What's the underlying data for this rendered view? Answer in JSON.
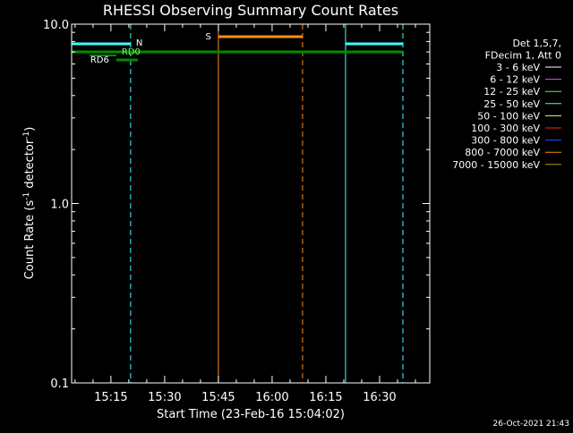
{
  "chart_data": {
    "type": "line",
    "title": "RHESSI Observing Summary Count Rates",
    "xlabel": "Start Time (23-Feb-16 15:04:02)",
    "ylabel_main": "Count Rate (s",
    "ylabel_sup1": "-1",
    "ylabel_mid": " detector",
    "ylabel_sup2": "-1",
    "ylabel_end": ")",
    "x_scale": "time",
    "y_scale": "log",
    "xlim": [
      "15:04:02",
      "16:44:00"
    ],
    "ylim": [
      0.1,
      10.0
    ],
    "x_ticks": [
      {
        "time": "15:15",
        "label": "15:15"
      },
      {
        "time": "15:30",
        "label": "15:30"
      },
      {
        "time": "15:45",
        "label": "15:45"
      },
      {
        "time": "16:00",
        "label": "16:00"
      },
      {
        "time": "16:15",
        "label": "16:15"
      },
      {
        "time": "16:30",
        "label": "16:30"
      }
    ],
    "y_ticks": [
      {
        "value": 10.0,
        "label": "10.0"
      },
      {
        "value": 1.0,
        "label": "1.0"
      },
      {
        "value": 0.1,
        "label": "0.1"
      }
    ],
    "legend_position": "top-right",
    "legend_header": [
      "Det 1,5,7,",
      "FDecim 1, Att 0"
    ],
    "legend": [
      {
        "label": "3 - 6 keV",
        "color": "#ffffff"
      },
      {
        "label": "6 - 12 keV",
        "color": "#ff40ff"
      },
      {
        "label": "12 - 25 keV",
        "color": "#40ff40"
      },
      {
        "label": "25 - 50 keV",
        "color": "#40ffff"
      },
      {
        "label": "50 - 100 keV",
        "color": "#ffff40"
      },
      {
        "label": "100 - 300 keV",
        "color": "#ff2020"
      },
      {
        "label": "300 - 800 keV",
        "color": "#4040ff"
      },
      {
        "label": "800 - 7000 keV",
        "color": "#ff8c1a"
      },
      {
        "label": "7000 - 15000 keV",
        "color": "#b59a10"
      }
    ],
    "night_intervals": [
      {
        "start": "15:04:02",
        "end": "15:20:30",
        "label": "N",
        "color": "#40ffff"
      },
      {
        "start": "16:20:30",
        "end": "16:36:30",
        "label": "",
        "color": "#40ffff"
      }
    ],
    "saa_intervals": [
      {
        "start": "15:45:00",
        "end": "16:08:30",
        "label": "S",
        "color": "#ff8c1a"
      }
    ],
    "decimation_bars": [
      {
        "start": "15:04:02",
        "end": "16:36:30",
        "label": "RD0",
        "color": "#008c00",
        "level": "upper"
      },
      {
        "start": "15:16:30",
        "end": "15:22:30",
        "label": "RD6",
        "color": "#008c00",
        "level": "lower"
      }
    ],
    "series": []
  },
  "timestamp": "26-Oct-2021 21:43"
}
